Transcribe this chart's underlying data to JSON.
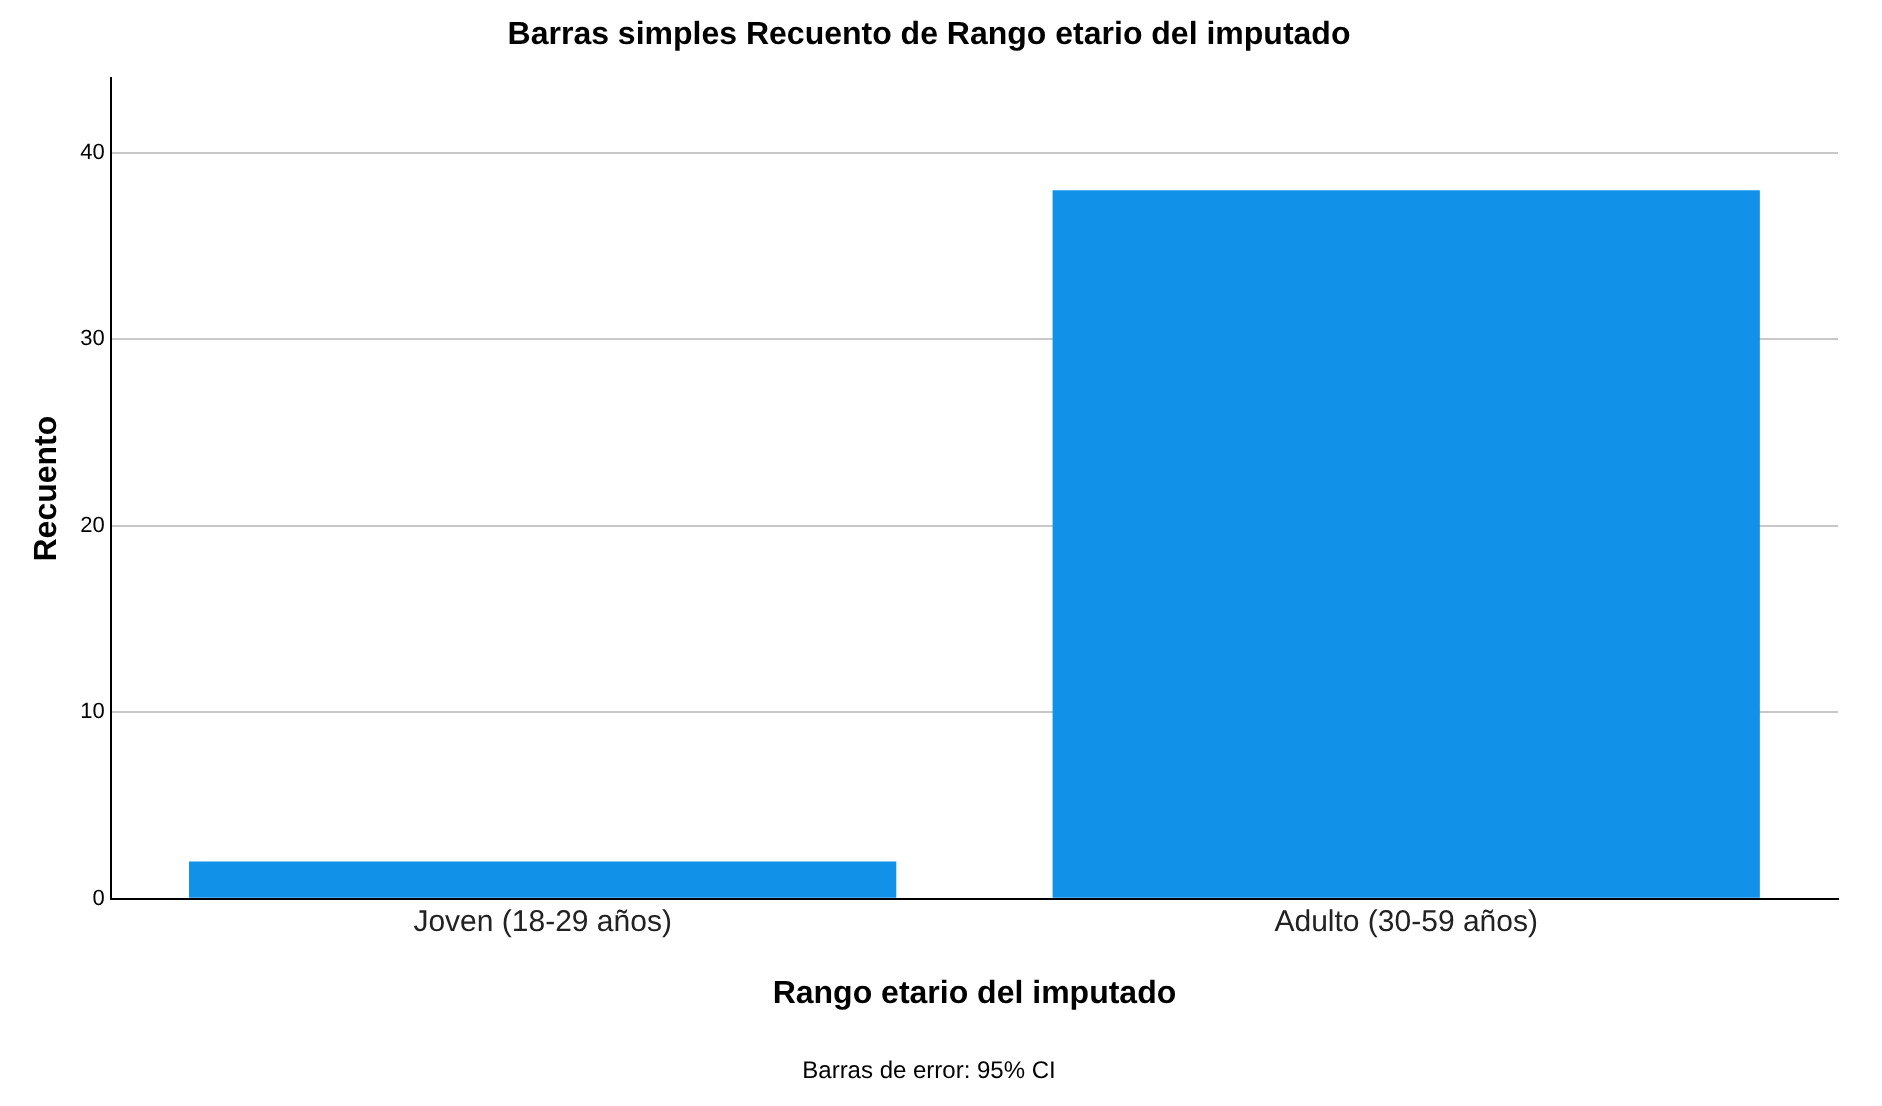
{
  "chart_data": {
    "type": "bar",
    "title": "Barras simples Recuento de Rango etario del imputado",
    "xlabel": "Rango etario del imputado",
    "ylabel": "Recuento",
    "categories": [
      "Joven (18-29 años)",
      "Adulto (30-59 años)"
    ],
    "values": [
      2,
      38
    ],
    "color": "#1192e8",
    "ylim": [
      0,
      44
    ],
    "yticks": [
      0,
      10,
      20,
      30,
      40
    ],
    "grid": "y",
    "legend": false,
    "annotations": [
      "Barras de error: 95% CI"
    ]
  }
}
